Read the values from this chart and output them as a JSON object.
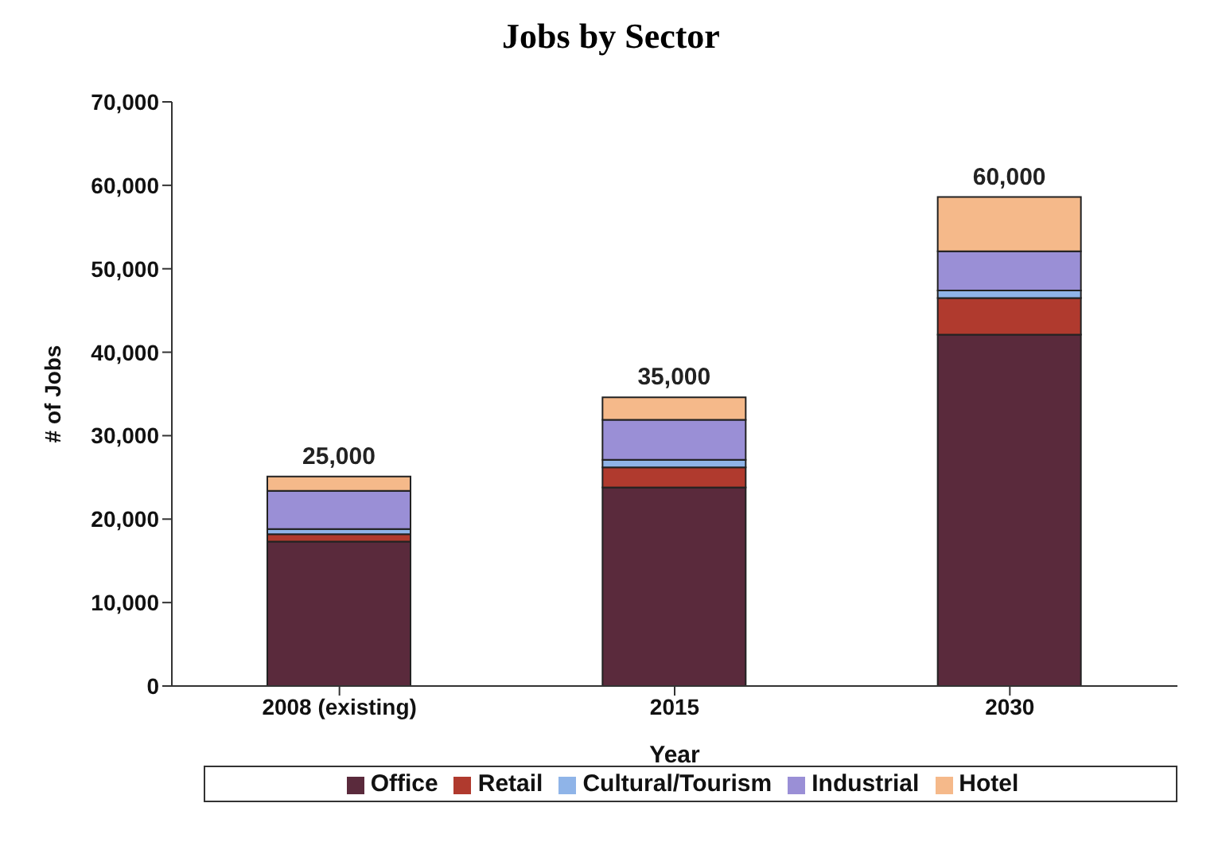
{
  "chart_data": {
    "type": "bar",
    "title": "Jobs by Sector",
    "xlabel": "Year",
    "ylabel": "# of Jobs",
    "categories": [
      "2008 (existing)",
      "2015",
      "2030"
    ],
    "stacked": true,
    "series": [
      {
        "name": "Office",
        "color": "#5a2a3c",
        "values": [
          17300,
          23800,
          42100
        ]
      },
      {
        "name": "Retail",
        "color": "#b03a2e",
        "values": [
          900,
          2400,
          4400
        ]
      },
      {
        "name": "Cultural/Tourism",
        "color": "#8fb4e8",
        "values": [
          600,
          900,
          900
        ]
      },
      {
        "name": "Industrial",
        "color": "#9a8fd6",
        "values": [
          4600,
          4800,
          4700
        ]
      },
      {
        "name": "Hotel",
        "color": "#f5b98a",
        "values": [
          1700,
          2700,
          6500
        ]
      }
    ],
    "annotations": [
      "25,000",
      "35,000",
      "60,000"
    ],
    "ylim": [
      0,
      70000
    ],
    "yticks": [
      {
        "value": 0,
        "label": "0"
      },
      {
        "value": 10000,
        "label": "10,000"
      },
      {
        "value": 20000,
        "label": "20,000"
      },
      {
        "value": 30000,
        "label": "30,000"
      },
      {
        "value": 40000,
        "label": "40,000"
      },
      {
        "value": 50000,
        "label": "50,000"
      },
      {
        "value": 60000,
        "label": "60,000"
      },
      {
        "value": 70000,
        "label": "70,000"
      }
    ],
    "grid": false,
    "legend": "bottom"
  }
}
